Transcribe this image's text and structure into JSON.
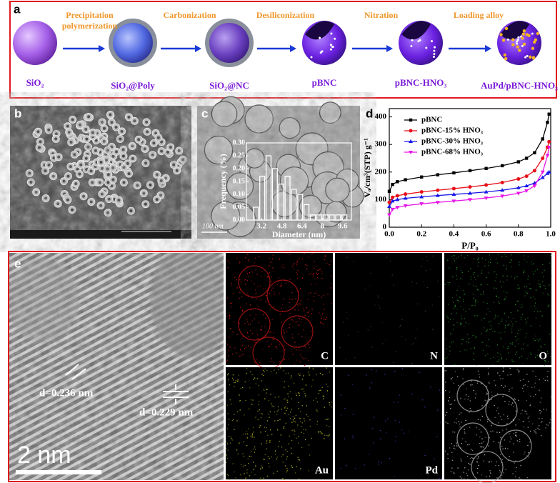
{
  "panel_labels": [
    "a",
    "b",
    "c",
    "d",
    "e"
  ],
  "schematic": {
    "materials": [
      "SiO₂",
      "SiO₂@Poly",
      "SiO₂@NC",
      "pBNC",
      "pBNC-HNO₃",
      "AuPd/pBNC-HNO₃"
    ],
    "steps": [
      [
        "Precipitation",
        "polymerization"
      ],
      [
        "Carbonization"
      ],
      [
        "Desiliconization"
      ],
      [
        "Nitration"
      ],
      [
        "Loading alloy"
      ]
    ]
  },
  "tem_scale": "100 nm",
  "hrtem": {
    "d_spacings": [
      "d=0.236 nm",
      "d=0.229 nm"
    ],
    "scale": "2 nm"
  },
  "mapping": {
    "elements": [
      "C",
      "N",
      "O",
      "Au",
      "Pd"
    ]
  },
  "chart_data": [
    {
      "type": "histogram",
      "ylabel": "Frequency (%)",
      "xlabel": "Diameter (nm)",
      "bins": [
        2.5,
        3.0,
        3.5,
        4.0,
        4.5,
        5.0,
        5.5,
        6.0,
        6.5,
        7.0,
        7.5,
        8.0,
        8.5,
        9.0,
        9.5,
        10.0
      ],
      "values": [
        0.05,
        0.17,
        0.25,
        0.2,
        0.14,
        0.17,
        0.12,
        0.1,
        0.06,
        0.02,
        0.02,
        0.02,
        0.02,
        0.02,
        0.02
      ],
      "color": "#ffffff",
      "xlim": [
        2.0,
        10.3
      ],
      "xticks": [
        3.2,
        4.8,
        6.4,
        8,
        9.6
      ],
      "ylim": [
        0,
        0.3
      ],
      "yticks": [
        {
          "value": 0,
          "label": "0.00"
        },
        0.05,
        {
          "value": 0.1,
          "label": "0.10"
        },
        0.15,
        {
          "value": 0.2,
          "label": "0.20"
        },
        0.25,
        {
          "value": 0.3,
          "label": "0.30"
        }
      ]
    },
    {
      "type": "line",
      "xlabel": "P/P₀",
      "ylabel": "Vₐ/cm³(STP) g⁻¹",
      "x": [
        0,
        0.02,
        0.05,
        0.1,
        0.2,
        0.3,
        0.4,
        0.5,
        0.6,
        0.7,
        0.8,
        0.85,
        0.9,
        0.95,
        0.98,
        0.99
      ],
      "series": [
        {
          "name": "pBNC",
          "color": "#000000",
          "values": [
            130,
            155,
            165,
            172,
            182,
            190,
            197,
            205,
            213,
            223,
            237,
            250,
            270,
            320,
            380,
            410
          ]
        },
        {
          "name": "pBNC-15% HNO₃",
          "color": "#e8101a",
          "values": [
            90,
            108,
            114,
            120,
            128,
            134,
            140,
            146,
            153,
            162,
            175,
            185,
            205,
            250,
            290,
            310
          ]
        },
        {
          "name": "pBNC-30% HNO₃",
          "color": "#1515e8",
          "values": [
            75,
            95,
            100,
            105,
            110,
            115,
            119,
            123,
            128,
            134,
            143,
            150,
            160,
            180,
            195,
            200
          ]
        },
        {
          "name": "pBNC-68% HNO₃",
          "color": "#e815e8",
          "values": [
            45,
            65,
            72,
            78,
            85,
            90,
            95,
            100,
            106,
            113,
            123,
            132,
            150,
            200,
            260,
            290
          ]
        }
      ],
      "xlim": [
        0,
        1
      ],
      "xticks": [
        {
          "value": 0,
          "label": "0.0"
        },
        0.2,
        0.4,
        0.6,
        0.8,
        {
          "value": 1,
          "label": "1.0"
        }
      ],
      "ylim": [
        0,
        430
      ],
      "yticks": [
        0,
        100,
        200,
        300,
        400
      ]
    }
  ]
}
